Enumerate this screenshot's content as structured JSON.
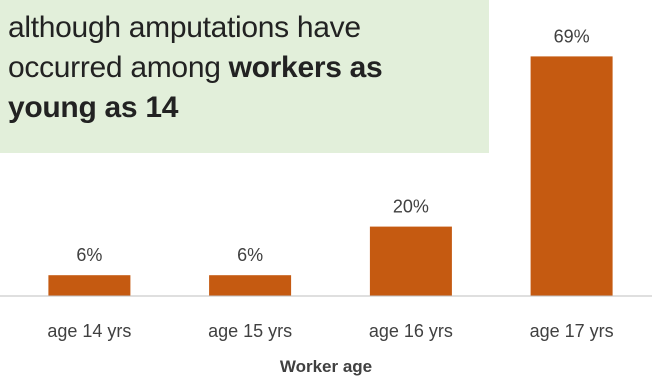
{
  "callout": {
    "line1": "although amputations have",
    "line2_normal": "occurred among ",
    "line2_bold": "workers as",
    "line3_bold": "young as 14"
  },
  "colors": {
    "bar": "#c55a11",
    "callout_bg": "#e2efda",
    "axis": "#bfbfbf",
    "text": "#404040"
  },
  "chart_data": {
    "type": "bar",
    "categories": [
      "age 14 yrs",
      "age 15 yrs",
      "age 16 yrs",
      "age 17 yrs"
    ],
    "values": [
      6,
      6,
      20,
      69
    ],
    "data_labels": [
      "6%",
      "6%",
      "20%",
      "69%"
    ],
    "xlabel": "Worker age",
    "ylim": [
      0,
      72
    ],
    "grid": false,
    "legend": "none"
  }
}
